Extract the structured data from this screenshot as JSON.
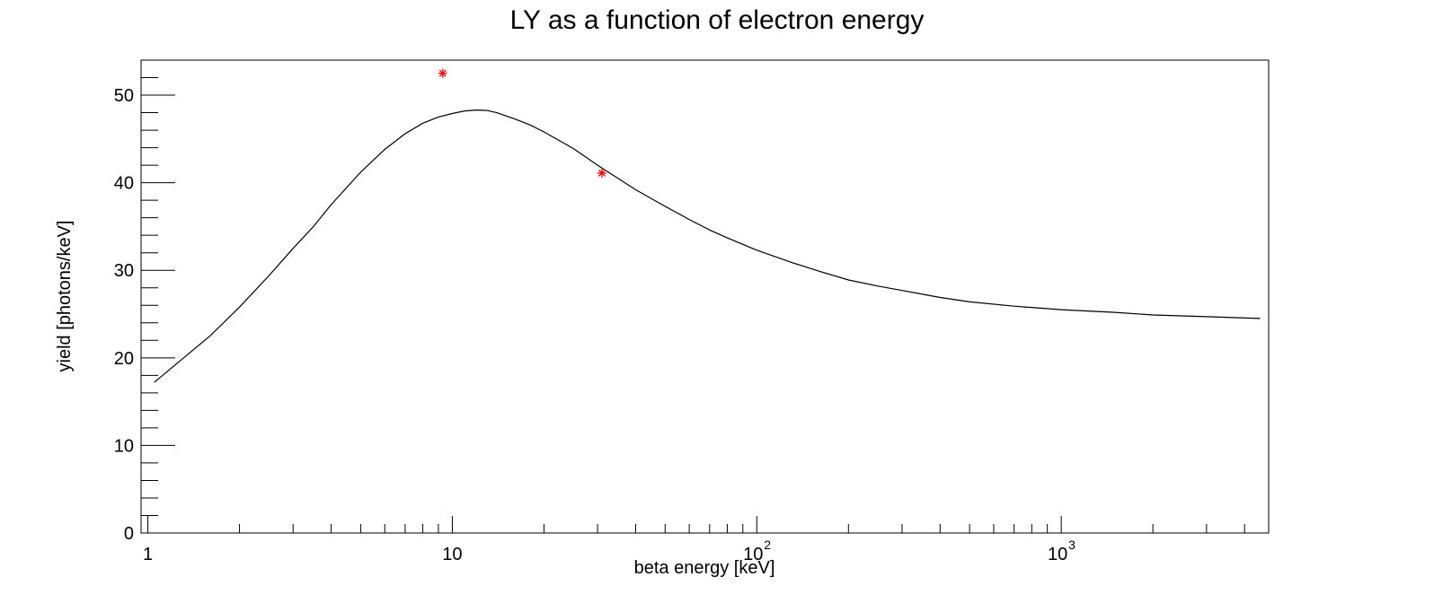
{
  "chart_data": {
    "type": "line",
    "title": "LY as a function of electron energy",
    "xlabel": "beta energy [keV]",
    "ylabel": "yield [photons/keV]",
    "x_scale": "log",
    "xlim": [
      0.95,
      4800
    ],
    "ylim": [
      0,
      54
    ],
    "grid": false,
    "x_ticks": [
      {
        "value": 1,
        "label": "1",
        "exp": ""
      },
      {
        "value": 10,
        "label": "10",
        "exp": ""
      },
      {
        "value": 100,
        "label": "10",
        "exp": "2"
      },
      {
        "value": 1000,
        "label": "10",
        "exp": "3"
      }
    ],
    "y_ticks": [
      {
        "value": 0,
        "label": "0"
      },
      {
        "value": 10,
        "label": "10"
      },
      {
        "value": 20,
        "label": "20"
      },
      {
        "value": 30,
        "label": "30"
      },
      {
        "value": 40,
        "label": "40"
      },
      {
        "value": 50,
        "label": "50"
      }
    ],
    "series": [
      {
        "kind": "curve",
        "color": "#000000",
        "x": [
          1.05,
          1.3,
          1.6,
          2.0,
          2.5,
          3.0,
          3.5,
          4.0,
          5.0,
          6.0,
          7.0,
          8.0,
          9.0,
          10.0,
          11.0,
          12.0,
          13.0,
          14.0,
          16.0,
          18.0,
          20.0,
          25.0,
          30.0,
          35.0,
          40.0,
          50.0,
          60.0,
          70.0,
          80.0,
          100.0,
          130.0,
          160.0,
          200.0,
          250.0,
          300.0,
          400.0,
          500.0,
          700.0,
          1000.0,
          1500.0,
          2000.0,
          3000.0,
          4500.0
        ],
        "y": [
          17.2,
          19.9,
          22.5,
          25.8,
          29.4,
          32.5,
          35.0,
          37.5,
          41.2,
          43.8,
          45.6,
          46.8,
          47.5,
          47.9,
          48.2,
          48.3,
          48.25,
          48.0,
          47.3,
          46.6,
          45.8,
          43.9,
          42.0,
          40.5,
          39.2,
          37.3,
          35.8,
          34.6,
          33.7,
          32.3,
          30.9,
          29.9,
          28.9,
          28.2,
          27.7,
          26.9,
          26.4,
          25.9,
          25.5,
          25.2,
          24.9,
          24.7,
          24.5
        ]
      },
      {
        "kind": "markers",
        "marker": "asterisk",
        "color": "#ff0000",
        "x": [
          9.3,
          31.0
        ],
        "y": [
          52.5,
          41.1
        ]
      }
    ]
  }
}
